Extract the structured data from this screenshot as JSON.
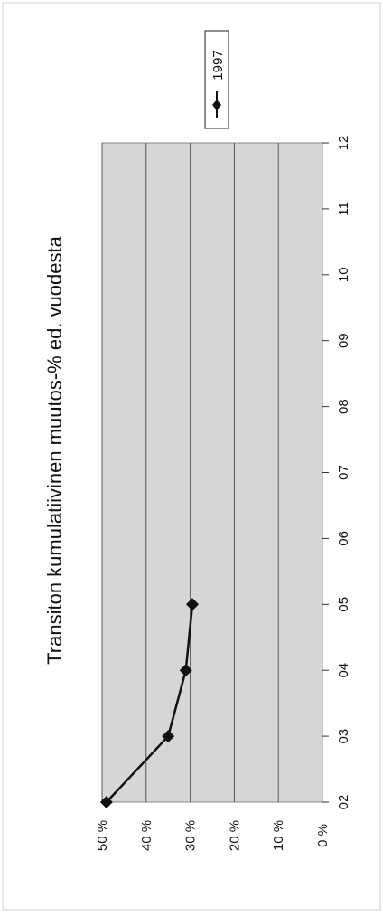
{
  "chart_data": {
    "type": "line",
    "title": "Transiton kumulatiivinen muutos-% ed. vuodesta",
    "xlabel": "",
    "ylabel": "",
    "categories": [
      "02",
      "03",
      "04",
      "05",
      "06",
      "07",
      "08",
      "09",
      "10",
      "11",
      "12"
    ],
    "series": [
      {
        "name": "1997",
        "values": [
          49,
          35,
          31,
          29.5,
          null,
          null,
          null,
          null,
          null,
          null,
          null
        ],
        "color": "#111111",
        "marker": "diamond"
      }
    ],
    "y_ticks": [
      "0 %",
      "10 %",
      "20 %",
      "30 %",
      "40 %",
      "50 %"
    ],
    "ylim": [
      0,
      50
    ],
    "grid": true,
    "legend_position": "top-right",
    "orientation": "rotated-90-clockwise",
    "colors": {
      "plot_background": "#d6d6d6",
      "grid": "#555555",
      "series": "#111111",
      "frame": "#888888"
    }
  }
}
